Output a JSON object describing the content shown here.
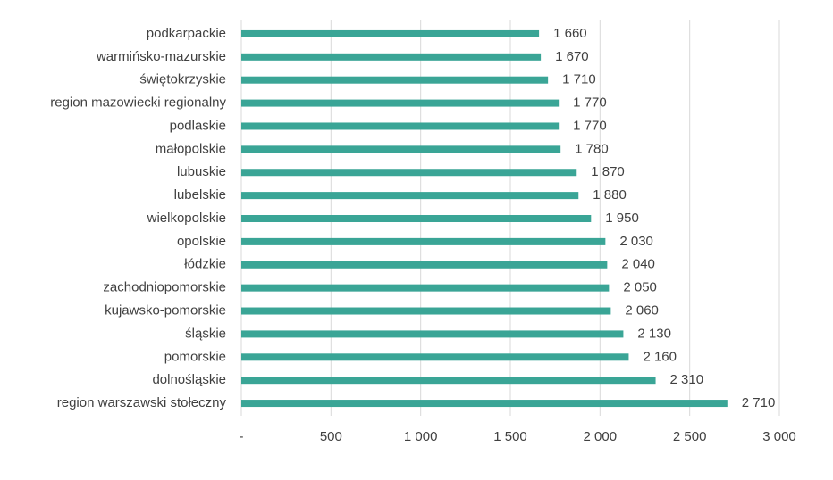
{
  "chart_data": {
    "type": "bar",
    "orientation": "horizontal",
    "categories": [
      "podkarpackie",
      "warmińsko-mazurskie",
      "świętokrzyskie",
      "region mazowiecki regionalny",
      "podlaskie",
      "małopolskie",
      "lubuskie",
      "lubelskie",
      "wielkopolskie",
      "opolskie",
      "łódzkie",
      "zachodniopomorskie",
      "kujawsko-pomorskie",
      "śląskie",
      "pomorskie",
      "dolnośląskie",
      "region warszawski stołeczny"
    ],
    "values": [
      1660,
      1670,
      1710,
      1770,
      1770,
      1780,
      1870,
      1880,
      1950,
      2030,
      2040,
      2050,
      2060,
      2130,
      2160,
      2310,
      2710
    ],
    "value_labels": [
      "1 660",
      "1 670",
      "1 710",
      "1 770",
      "1 770",
      "1 780",
      "1 870",
      "1 880",
      "1 950",
      "2 030",
      "2 040",
      "2 050",
      "2 060",
      "2 130",
      "2 160",
      "2 310",
      "2 710"
    ],
    "color": "#3aa596",
    "xlim": [
      0,
      3000
    ],
    "xticks": [
      {
        "value": 0,
        "label": "-"
      },
      500,
      {
        "value": 1000,
        "label": "1 000"
      },
      {
        "value": 1500,
        "label": "1 500"
      },
      {
        "value": 2000,
        "label": "2 000"
      },
      {
        "value": 2500,
        "label": "2 500"
      },
      {
        "value": 3000,
        "label": "3 000"
      }
    ],
    "grid": true
  }
}
